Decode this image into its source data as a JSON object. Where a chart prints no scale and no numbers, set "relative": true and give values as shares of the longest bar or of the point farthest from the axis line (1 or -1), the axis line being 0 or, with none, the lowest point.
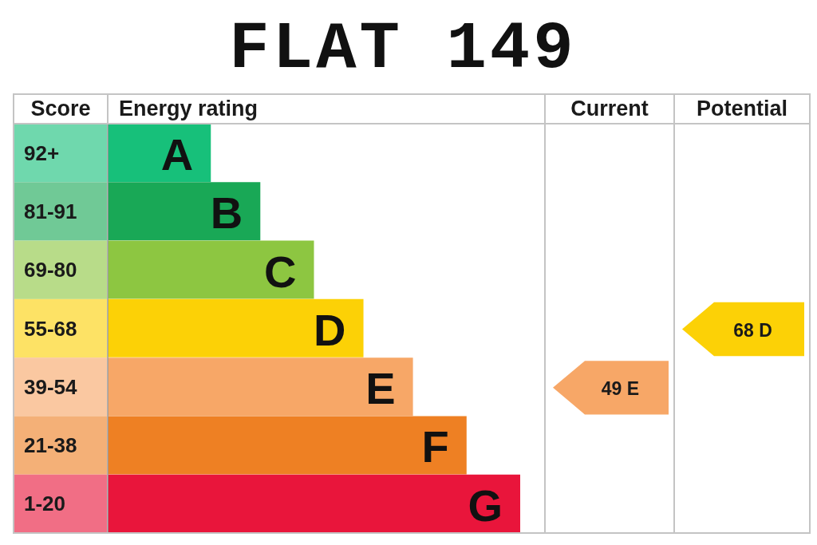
{
  "chart_data": {
    "type": "bar",
    "orientation": "horizontal",
    "relative": true,
    "title": "FLAT 149",
    "ylabel": "Score",
    "xlabel": "Energy rating",
    "categories": [
      "92+",
      "81-91",
      "69-80",
      "55-68",
      "39-54",
      "21-38",
      "1-20"
    ],
    "values": [
      0.25,
      0.37,
      0.5,
      0.62,
      0.74,
      0.87,
      1
    ],
    "colors": [
      "#17c07a",
      "#19a856",
      "#8dc641",
      "#fcd106",
      "#f7a767",
      "#ee8023",
      "#e9153b"
    ],
    "annotations": [
      "Current",
      "Potential",
      "A",
      "B",
      "C",
      "D",
      "E",
      "F",
      "G",
      "49 E",
      "68 D"
    ]
  }
}
